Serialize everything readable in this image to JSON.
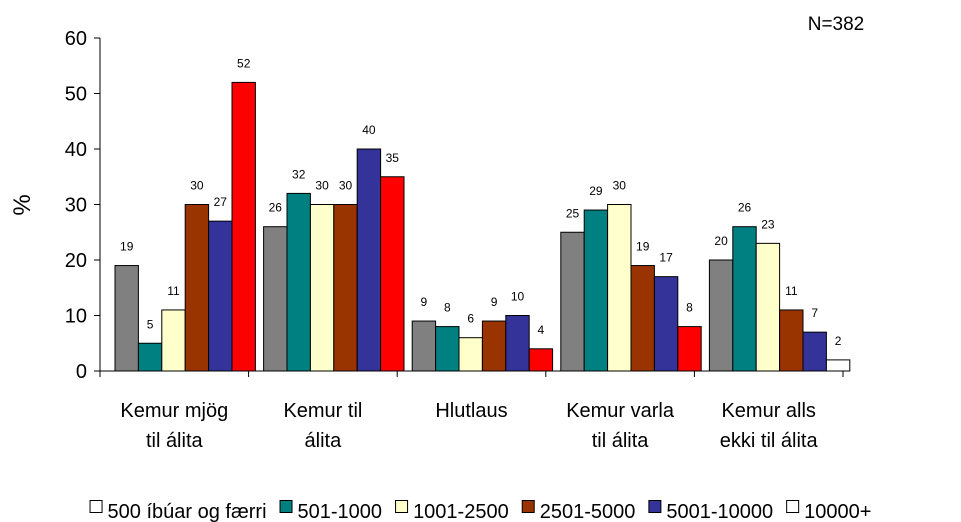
{
  "chart_data": {
    "type": "bar",
    "categories": [
      [
        "Kemur mjög",
        "til álita"
      ],
      [
        "Kemur til",
        "álita"
      ],
      [
        "Hlutlaus"
      ],
      [
        "Kemur varla",
        "til álita"
      ],
      [
        "Kemur alls",
        "ekki til álita"
      ]
    ],
    "series": [
      {
        "name": "500 íbúar og færri",
        "color": "#808080",
        "values": [
          19,
          26,
          9,
          25,
          20
        ]
      },
      {
        "name": "501-1000",
        "color": "#008080",
        "values": [
          5,
          32,
          8,
          29,
          26
        ]
      },
      {
        "name": "1001-2500",
        "color": "#ffffcc",
        "values": [
          11,
          30,
          6,
          30,
          23
        ]
      },
      {
        "name": "2501-5000",
        "color": "#993300",
        "values": [
          30,
          30,
          9,
          19,
          11
        ]
      },
      {
        "name": "5001-10000",
        "color": "#333399",
        "values": [
          27,
          40,
          10,
          17,
          7
        ]
      },
      {
        "name": "10000+",
        "color": "#ff0000",
        "values": [
          52,
          35,
          4,
          8,
          null
        ]
      }
    ],
    "extra_bar": {
      "series": "10000+",
      "category_index": 4,
      "value": 2,
      "color": "#ffffff"
    },
    "data_labels": [
      [
        "19",
        "5",
        "11",
        "30",
        "27",
        "52"
      ],
      [
        "26",
        "32",
        "30",
        "30",
        "40",
        "35"
      ],
      [
        "9",
        "8",
        "6",
        "9",
        "10",
        "4"
      ],
      [
        "25",
        "29",
        "30",
        "19",
        "17",
        "8"
      ],
      [
        "20",
        "26",
        "23",
        "11",
        "7",
        "2"
      ]
    ],
    "legend_items": [
      {
        "label": "500 íbúar og færri",
        "color": "#ffffff"
      },
      {
        "label": "501-1000",
        "color": "#008080"
      },
      {
        "label": "1001-2500",
        "color": "#ffffcc"
      },
      {
        "label": "2501-5000",
        "color": "#993300"
      },
      {
        "label": "5001-10000",
        "color": "#333399"
      },
      {
        "label": "10000+",
        "color": "#ffffff"
      }
    ],
    "ylabel": "%",
    "yticks": [
      "0",
      "10",
      "20",
      "30",
      "40",
      "50",
      "60"
    ],
    "ylim": [
      0,
      60
    ],
    "note": "N=382",
    "grid": false,
    "legend_position": "bottom"
  }
}
